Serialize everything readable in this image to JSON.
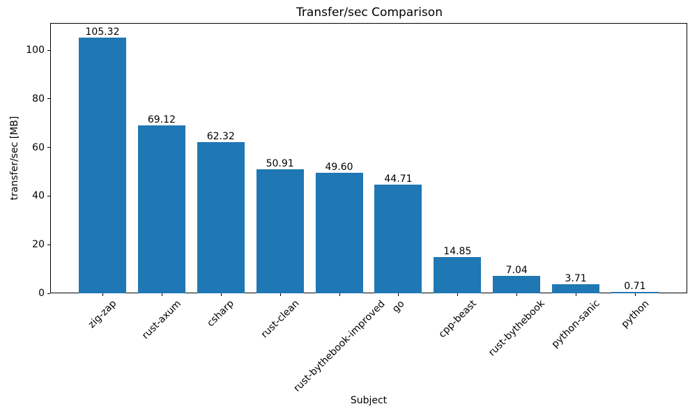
{
  "chart_data": {
    "type": "bar",
    "title": "Transfer/sec Comparison",
    "xlabel": "Subject",
    "ylabel": "transfer/sec [MB]",
    "categories": [
      "zig-zap",
      "rust-axum",
      "csharp",
      "rust-clean",
      "rust-bythebook-improved",
      "go",
      "cpp-beast",
      "rust-bythebook",
      "python-sanic",
      "python"
    ],
    "values": [
      105.32,
      69.12,
      62.32,
      50.91,
      49.6,
      44.71,
      14.85,
      7.04,
      3.71,
      0.71
    ],
    "bar_labels": [
      "105.32",
      "69.12",
      "62.32",
      "50.91",
      "49.60",
      "44.71",
      "14.85",
      "7.04",
      "3.71",
      "0.71"
    ],
    "y_ticks": [
      0,
      20,
      40,
      60,
      80,
      100
    ],
    "ylim": [
      0,
      111.2
    ],
    "bar_color": "#1f77b4",
    "grid": false,
    "legend": null,
    "x_tick_rotation_deg": 45
  }
}
